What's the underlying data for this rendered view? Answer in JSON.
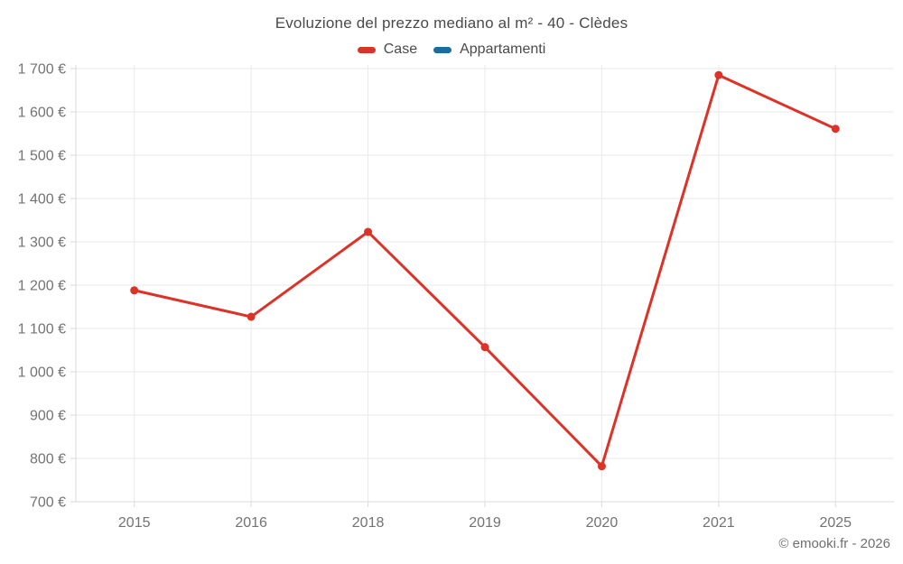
{
  "header": {
    "title": "Evoluzione del prezzo mediano al m² - 40 - Clèdes"
  },
  "legend": {
    "items": [
      {
        "label": "Case",
        "color": "#dd3227"
      },
      {
        "label": "Appartamenti",
        "color": "#1b6d9e"
      }
    ]
  },
  "footer": {
    "credit": "© emooki.fr - 2026"
  },
  "chart_data": {
    "type": "line",
    "title": "Evoluzione del prezzo mediano al m² - 40 - Clèdes",
    "categories": [
      "2015",
      "2016",
      "2018",
      "2019",
      "2020",
      "2021",
      "2025"
    ],
    "series": [
      {
        "name": "Case",
        "color": "#dd3227",
        "values": [
          1188,
          1127,
          1323,
          1057,
          782,
          1685,
          1561
        ]
      },
      {
        "name": "Appartamenti",
        "color": "#1b6d9e",
        "values": []
      }
    ],
    "xlabel": "",
    "ylabel": "",
    "ylim": [
      700,
      1700
    ],
    "ytick_step": 100,
    "ytick_labels": [
      "700 €",
      "800 €",
      "900 €",
      "1 000 €",
      "1 100 €",
      "1 200 €",
      "1 300 €",
      "1 400 €",
      "1 500 €",
      "1 600 €",
      "1 700 €"
    ],
    "grid": true,
    "legend_position": "top",
    "colors": {
      "grid_line": "#e9e9e9",
      "axis_border": "#dadada",
      "tick_label": "#737373",
      "title_text": "#4a4a4a"
    }
  }
}
